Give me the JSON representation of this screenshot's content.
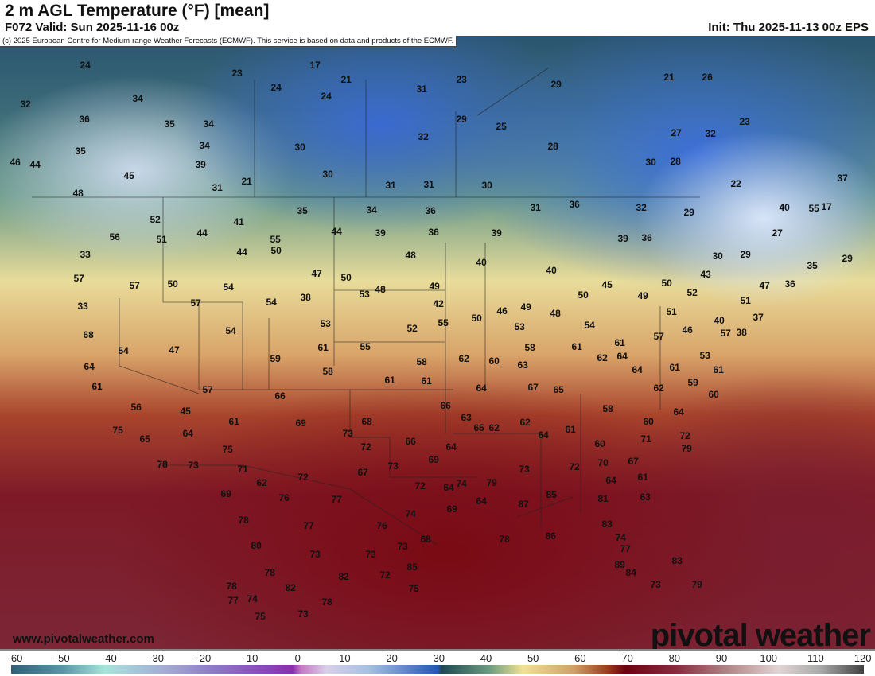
{
  "header": {
    "title": "2 m AGL Temperature (°F) [mean]",
    "valid": "F072 Valid: Sun 2025-11-16 00z",
    "init": "Init: Thu 2025-11-13 00z EPS"
  },
  "credit": "(c) 2025 European Centre for Medium-range Weather Forecasts (ECMWF). This service is based on data and products of the ECMWF.",
  "site": "www.pivotalweather.com",
  "logo": "pivotal weather",
  "colorbar": {
    "ticks": [
      "-60",
      "-50",
      "-40",
      "-30",
      "-20",
      "-10",
      "0",
      "10",
      "20",
      "30",
      "40",
      "50",
      "60",
      "70",
      "80",
      "90",
      "100",
      "110",
      "120"
    ]
  },
  "temps": [
    "24",
    "23",
    "17",
    "21",
    "24",
    "23",
    "29",
    "21",
    "26",
    "32",
    "34",
    "36",
    "35",
    "34",
    "31",
    "24",
    "29",
    "25",
    "28",
    "27",
    "23",
    "35",
    "34",
    "30",
    "32",
    "30",
    "39",
    "30",
    "31",
    "31",
    "30",
    "28",
    "22",
    "37",
    "46",
    "44",
    "48",
    "45",
    "31",
    "21",
    "17",
    "32",
    "40",
    "55",
    "50",
    "52",
    "41",
    "35",
    "34",
    "36",
    "31",
    "36",
    "32",
    "29",
    "27",
    "56",
    "51",
    "44",
    "44",
    "55",
    "44",
    "39",
    "36",
    "39",
    "39",
    "36",
    "30",
    "29",
    "35",
    "29",
    "33",
    "57",
    "57",
    "50",
    "54",
    "47",
    "50",
    "48",
    "40",
    "40",
    "45",
    "50",
    "49",
    "50",
    "52",
    "43",
    "47",
    "36",
    "33",
    "57",
    "54",
    "38",
    "48",
    "49",
    "42",
    "46",
    "48",
    "49",
    "53",
    "55",
    "51",
    "37",
    "68",
    "54",
    "47",
    "54",
    "53",
    "52",
    "51",
    "50",
    "53",
    "54",
    "61",
    "57",
    "46",
    "40",
    "38",
    "64",
    "59",
    "61",
    "55",
    "58",
    "62",
    "60",
    "63",
    "58",
    "61",
    "62",
    "64",
    "61",
    "53",
    "57",
    "61",
    "61",
    "57",
    "58",
    "61",
    "61",
    "64",
    "67",
    "65",
    "64",
    "59",
    "62",
    "60",
    "56",
    "45",
    "61",
    "64",
    "66",
    "69",
    "68",
    "66",
    "63",
    "65",
    "62",
    "58",
    "60",
    "64",
    "72",
    "75",
    "65",
    "73",
    "75",
    "71",
    "72",
    "66",
    "64",
    "62",
    "64",
    "61",
    "60",
    "71",
    "79",
    "78",
    "73",
    "73",
    "69",
    "67",
    "64",
    "62",
    "72",
    "72",
    "74",
    "79",
    "73",
    "72",
    "70",
    "67",
    "64",
    "61",
    "63",
    "81",
    "69",
    "76",
    "77",
    "74",
    "69",
    "64",
    "85",
    "87",
    "78",
    "80",
    "77",
    "76",
    "73",
    "68",
    "78",
    "86",
    "74",
    "83",
    "77",
    "78",
    "73",
    "73",
    "85",
    "84",
    "89",
    "83",
    "78",
    "74",
    "82",
    "82",
    "72",
    "75",
    "73",
    "79",
    "77",
    "75",
    "73",
    "78"
  ]
}
